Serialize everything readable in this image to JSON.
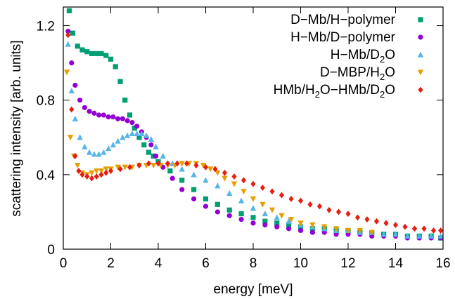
{
  "chart_data": {
    "type": "scatter",
    "title": "",
    "xlabel": "energy [meV]",
    "ylabel": "scattering intensity [arb. units]",
    "xlim": [
      0,
      16
    ],
    "ylim": [
      0,
      1.3
    ],
    "xticks": [
      "0",
      "2",
      "4",
      "6",
      "8",
      "10",
      "12",
      "14",
      "16"
    ],
    "yticks": [
      "0",
      "0.4",
      "0.8",
      "1.2"
    ],
    "grid": false,
    "legend_position": "top-right",
    "series": [
      {
        "name": "D−Mb/H−polymer",
        "color": "#009e73",
        "marker": "square",
        "x": [
          0.25,
          0.4,
          0.6,
          0.8,
          1.0,
          1.2,
          1.4,
          1.6,
          1.8,
          2.0,
          2.2,
          2.4,
          2.6,
          2.8,
          3.0,
          3.2,
          3.4,
          3.6,
          3.8,
          4.0,
          4.5,
          5.0,
          5.5,
          6.0,
          6.5,
          7.0,
          7.5,
          8.0,
          8.5,
          9.0,
          9.5,
          10.0,
          10.5,
          11.0,
          11.5,
          12.0,
          12.5,
          13.0,
          13.5,
          14.0,
          14.5,
          15.0,
          15.5,
          15.9
        ],
        "y": [
          1.28,
          1.16,
          1.09,
          1.07,
          1.06,
          1.05,
          1.05,
          1.05,
          1.04,
          1.02,
          0.98,
          0.9,
          0.8,
          0.72,
          0.65,
          0.6,
          0.56,
          0.52,
          0.5,
          0.47,
          0.42,
          0.37,
          0.32,
          0.27,
          0.24,
          0.21,
          0.19,
          0.17,
          0.15,
          0.14,
          0.13,
          0.12,
          0.11,
          0.11,
          0.1,
          0.1,
          0.09,
          0.09,
          0.08,
          0.08,
          0.07,
          0.07,
          0.07,
          0.06
        ]
      },
      {
        "name": "H−Mb/D−polymer",
        "color": "#9400d3",
        "marker": "circle",
        "x": [
          0.2,
          0.35,
          0.5,
          0.7,
          0.9,
          1.1,
          1.3,
          1.5,
          1.7,
          1.9,
          2.1,
          2.3,
          2.5,
          2.7,
          2.9,
          3.1,
          3.3,
          3.5,
          3.7,
          3.9,
          4.2,
          4.6,
          5.0,
          5.5,
          6.0,
          6.5,
          7.0,
          7.5,
          8.0,
          8.5,
          9.0,
          9.5,
          10.0,
          10.5,
          11.0,
          11.5,
          12.0,
          12.5,
          13.0,
          13.5,
          14.0,
          14.5,
          15.0,
          15.5,
          15.9
        ],
        "y": [
          1.17,
          1.0,
          0.88,
          0.8,
          0.76,
          0.74,
          0.73,
          0.72,
          0.72,
          0.71,
          0.71,
          0.7,
          0.7,
          0.69,
          0.68,
          0.66,
          0.63,
          0.6,
          0.56,
          0.5,
          0.44,
          0.38,
          0.32,
          0.27,
          0.23,
          0.2,
          0.18,
          0.16,
          0.14,
          0.13,
          0.12,
          0.11,
          0.1,
          0.09,
          0.09,
          0.08,
          0.08,
          0.08,
          0.07,
          0.07,
          0.07,
          0.06,
          0.06,
          0.06,
          0.06
        ]
      },
      {
        "name": "H−Mb/D2O",
        "color": "#56b4e9",
        "marker": "triangle-up",
        "x": [
          0.2,
          0.35,
          0.5,
          0.7,
          0.9,
          1.1,
          1.3,
          1.5,
          1.7,
          1.9,
          2.1,
          2.3,
          2.5,
          2.7,
          2.9,
          3.1,
          3.3,
          3.5,
          3.7,
          3.9,
          4.2,
          4.6,
          5.0,
          5.5,
          6.0,
          6.5,
          7.0,
          7.5,
          8.0,
          8.5,
          9.0,
          9.5,
          10.0,
          10.5,
          11.0,
          11.5,
          12.0,
          12.5,
          13.0,
          13.5,
          14.0,
          14.5,
          15.0,
          15.5,
          15.9
        ],
        "y": [
          1.1,
          0.85,
          0.7,
          0.6,
          0.55,
          0.52,
          0.51,
          0.51,
          0.52,
          0.54,
          0.56,
          0.58,
          0.6,
          0.61,
          0.62,
          0.62,
          0.62,
          0.61,
          0.59,
          0.55,
          0.5,
          0.46,
          0.43,
          0.4,
          0.37,
          0.34,
          0.3,
          0.26,
          0.22,
          0.19,
          0.17,
          0.15,
          0.13,
          0.12,
          0.11,
          0.1,
          0.1,
          0.09,
          0.09,
          0.08,
          0.08,
          0.07,
          0.07,
          0.07,
          0.07
        ]
      },
      {
        "name": "D−MBP/H2O",
        "color": "#e69f00",
        "marker": "triangle-down",
        "x": [
          0.15,
          0.3,
          0.45,
          0.6,
          0.8,
          1.0,
          1.2,
          1.4,
          1.6,
          1.8,
          2.0,
          2.3,
          2.6,
          2.9,
          3.2,
          3.5,
          3.8,
          4.1,
          4.4,
          4.7,
          5.0,
          5.3,
          5.6,
          5.9,
          6.2,
          6.5,
          6.8,
          7.2,
          7.6,
          8.0,
          8.4,
          8.8,
          9.2,
          9.6,
          10.0,
          10.5,
          11.0,
          11.5,
          12.0,
          12.5,
          13.0
        ],
        "y": [
          0.95,
          0.6,
          0.5,
          0.45,
          0.41,
          0.4,
          0.41,
          0.42,
          0.42,
          0.43,
          0.43,
          0.44,
          0.44,
          0.44,
          0.45,
          0.45,
          0.45,
          0.45,
          0.45,
          0.45,
          0.46,
          0.46,
          0.46,
          0.45,
          0.43,
          0.41,
          0.38,
          0.35,
          0.31,
          0.27,
          0.24,
          0.21,
          0.18,
          0.16,
          0.14,
          0.13,
          0.12,
          0.11,
          0.1,
          0.1,
          0.09
        ]
      },
      {
        "name": "HMb/H2O−HMb/D2O",
        "color": "#e51e10",
        "marker": "diamond",
        "x": [
          0.2,
          0.35,
          0.5,
          0.65,
          0.8,
          1.0,
          1.2,
          1.4,
          1.6,
          1.8,
          2.0,
          2.4,
          2.8,
          3.2,
          3.6,
          4.0,
          4.4,
          4.8,
          5.2,
          5.6,
          6.0,
          6.4,
          6.8,
          7.2,
          7.6,
          8.0,
          8.4,
          8.8,
          9.2,
          9.6,
          10.0,
          10.4,
          10.8,
          11.2,
          11.6,
          12.0,
          12.4,
          12.8,
          13.2,
          13.6,
          14.0,
          14.4,
          14.8,
          15.2,
          15.6,
          15.9
        ],
        "y": [
          1.15,
          0.75,
          0.5,
          0.42,
          0.4,
          0.39,
          0.38,
          0.39,
          0.4,
          0.41,
          0.42,
          0.43,
          0.44,
          0.45,
          0.46,
          0.46,
          0.46,
          0.46,
          0.46,
          0.45,
          0.44,
          0.43,
          0.41,
          0.39,
          0.37,
          0.35,
          0.33,
          0.31,
          0.29,
          0.27,
          0.26,
          0.24,
          0.23,
          0.21,
          0.2,
          0.19,
          0.17,
          0.16,
          0.15,
          0.14,
          0.13,
          0.12,
          0.11,
          0.11,
          0.1,
          0.1
        ]
      }
    ]
  }
}
